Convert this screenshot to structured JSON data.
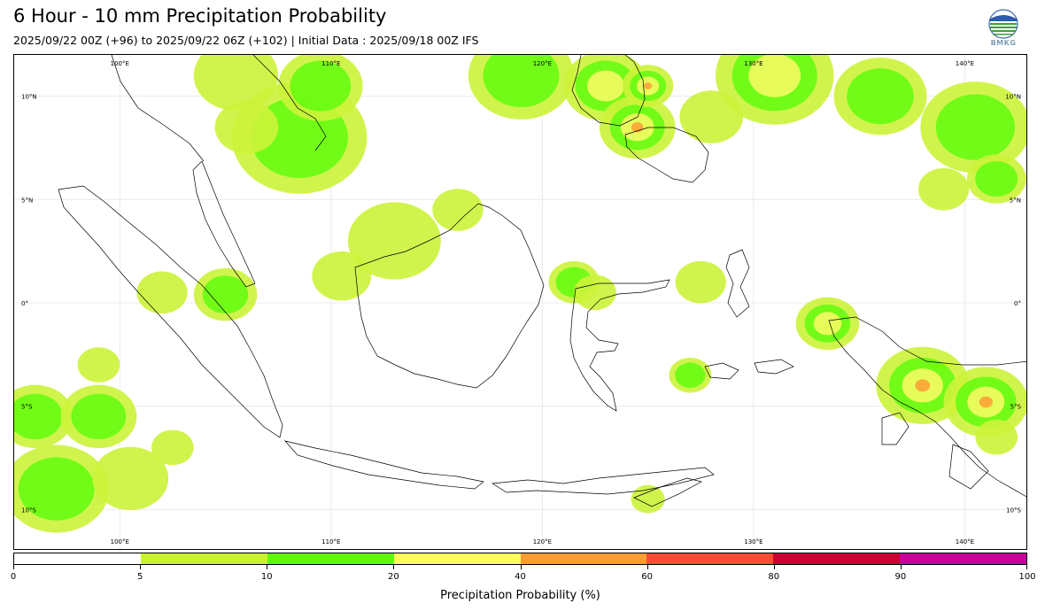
{
  "header": {
    "title": "6 Hour - 10 mm Precipitation Probability",
    "subtitle": "2025/09/22 00Z (+96) to 2025/09/22 06Z (+102) | Initial Data : 2025/09/18 00Z IFS",
    "logo_text": "BMKG"
  },
  "map": {
    "lon_range": [
      95,
      143
    ],
    "lat_range": [
      -12,
      12
    ],
    "lon_ticks": [
      "100°E",
      "110°E",
      "120°E",
      "130°E",
      "140°E"
    ],
    "lon_values": [
      100,
      110,
      120,
      130,
      140
    ],
    "lat_ticks": [
      "10°N",
      "5°N",
      "0°",
      "5°S",
      "10°S"
    ],
    "lat_values": [
      10,
      5,
      0,
      -5,
      -10
    ],
    "precip_areas": [
      {
        "lon": 108.5,
        "lat": 8.0,
        "r": 3.2,
        "level": 2
      },
      {
        "lon": 109.5,
        "lat": 10.5,
        "r": 2.0,
        "level": 2
      },
      {
        "lon": 105.5,
        "lat": 11.0,
        "r": 2.0,
        "level": 1
      },
      {
        "lon": 106.0,
        "lat": 8.5,
        "r": 1.5,
        "level": 1
      },
      {
        "lon": 113.0,
        "lat": 3.0,
        "r": 2.2,
        "level": 1
      },
      {
        "lon": 110.5,
        "lat": 1.3,
        "r": 1.4,
        "level": 1
      },
      {
        "lon": 116.0,
        "lat": 4.5,
        "r": 1.2,
        "level": 1
      },
      {
        "lon": 105.0,
        "lat": 0.4,
        "r": 1.5,
        "level": 2
      },
      {
        "lon": 102.0,
        "lat": 0.5,
        "r": 1.2,
        "level": 1
      },
      {
        "lon": 96.0,
        "lat": -5.5,
        "r": 1.8,
        "level": 2
      },
      {
        "lon": 99.0,
        "lat": -5.5,
        "r": 1.8,
        "level": 2
      },
      {
        "lon": 99.0,
        "lat": -3.0,
        "r": 1.0,
        "level": 1
      },
      {
        "lon": 97.0,
        "lat": -9.0,
        "r": 2.5,
        "level": 2
      },
      {
        "lon": 100.5,
        "lat": -8.5,
        "r": 1.8,
        "level": 1
      },
      {
        "lon": 102.5,
        "lat": -7.0,
        "r": 1.0,
        "level": 1
      },
      {
        "lon": 119.0,
        "lat": 11.0,
        "r": 2.5,
        "level": 2
      },
      {
        "lon": 123.0,
        "lat": 10.5,
        "r": 2.0,
        "level": 3
      },
      {
        "lon": 124.5,
        "lat": 8.5,
        "r": 1.8,
        "level": 4
      },
      {
        "lon": 125.0,
        "lat": 10.5,
        "r": 1.2,
        "level": 4
      },
      {
        "lon": 131.0,
        "lat": 11.0,
        "r": 2.8,
        "level": 3
      },
      {
        "lon": 128.0,
        "lat": 9.0,
        "r": 1.5,
        "level": 1
      },
      {
        "lon": 136.0,
        "lat": 10.0,
        "r": 2.2,
        "level": 2
      },
      {
        "lon": 140.5,
        "lat": 8.5,
        "r": 2.6,
        "level": 2
      },
      {
        "lon": 141.5,
        "lat": 6.0,
        "r": 1.4,
        "level": 2
      },
      {
        "lon": 139.0,
        "lat": 5.5,
        "r": 1.2,
        "level": 1
      },
      {
        "lon": 121.5,
        "lat": 1.0,
        "r": 1.2,
        "level": 2
      },
      {
        "lon": 122.5,
        "lat": 0.5,
        "r": 1.0,
        "level": 1
      },
      {
        "lon": 127.5,
        "lat": 1.0,
        "r": 1.2,
        "level": 1
      },
      {
        "lon": 127.0,
        "lat": -3.5,
        "r": 1.0,
        "level": 2
      },
      {
        "lon": 133.5,
        "lat": -1.0,
        "r": 1.5,
        "level": 3
      },
      {
        "lon": 138.0,
        "lat": -4.0,
        "r": 2.2,
        "level": 4
      },
      {
        "lon": 141.0,
        "lat": -4.8,
        "r": 2.0,
        "level": 4
      },
      {
        "lon": 141.5,
        "lat": -6.5,
        "r": 1.0,
        "level": 1
      },
      {
        "lon": 125.0,
        "lat": -9.5,
        "r": 0.8,
        "level": 1
      }
    ],
    "level_colors": [
      "#ccf33a",
      "#62fc0e",
      "#fcfc66",
      "#fd9d35"
    ]
  },
  "colorbar": {
    "title": "Precipitation Probability (%)",
    "ticks": [
      "0",
      "5",
      "10",
      "20",
      "40",
      "60",
      "80",
      "90",
      "100"
    ],
    "colors": [
      "#ffffff",
      "#c9f231",
      "#5ff80c",
      "#fbfb5c",
      "#fc9c33",
      "#fb4d32",
      "#cc0233",
      "#c9039a"
    ]
  }
}
